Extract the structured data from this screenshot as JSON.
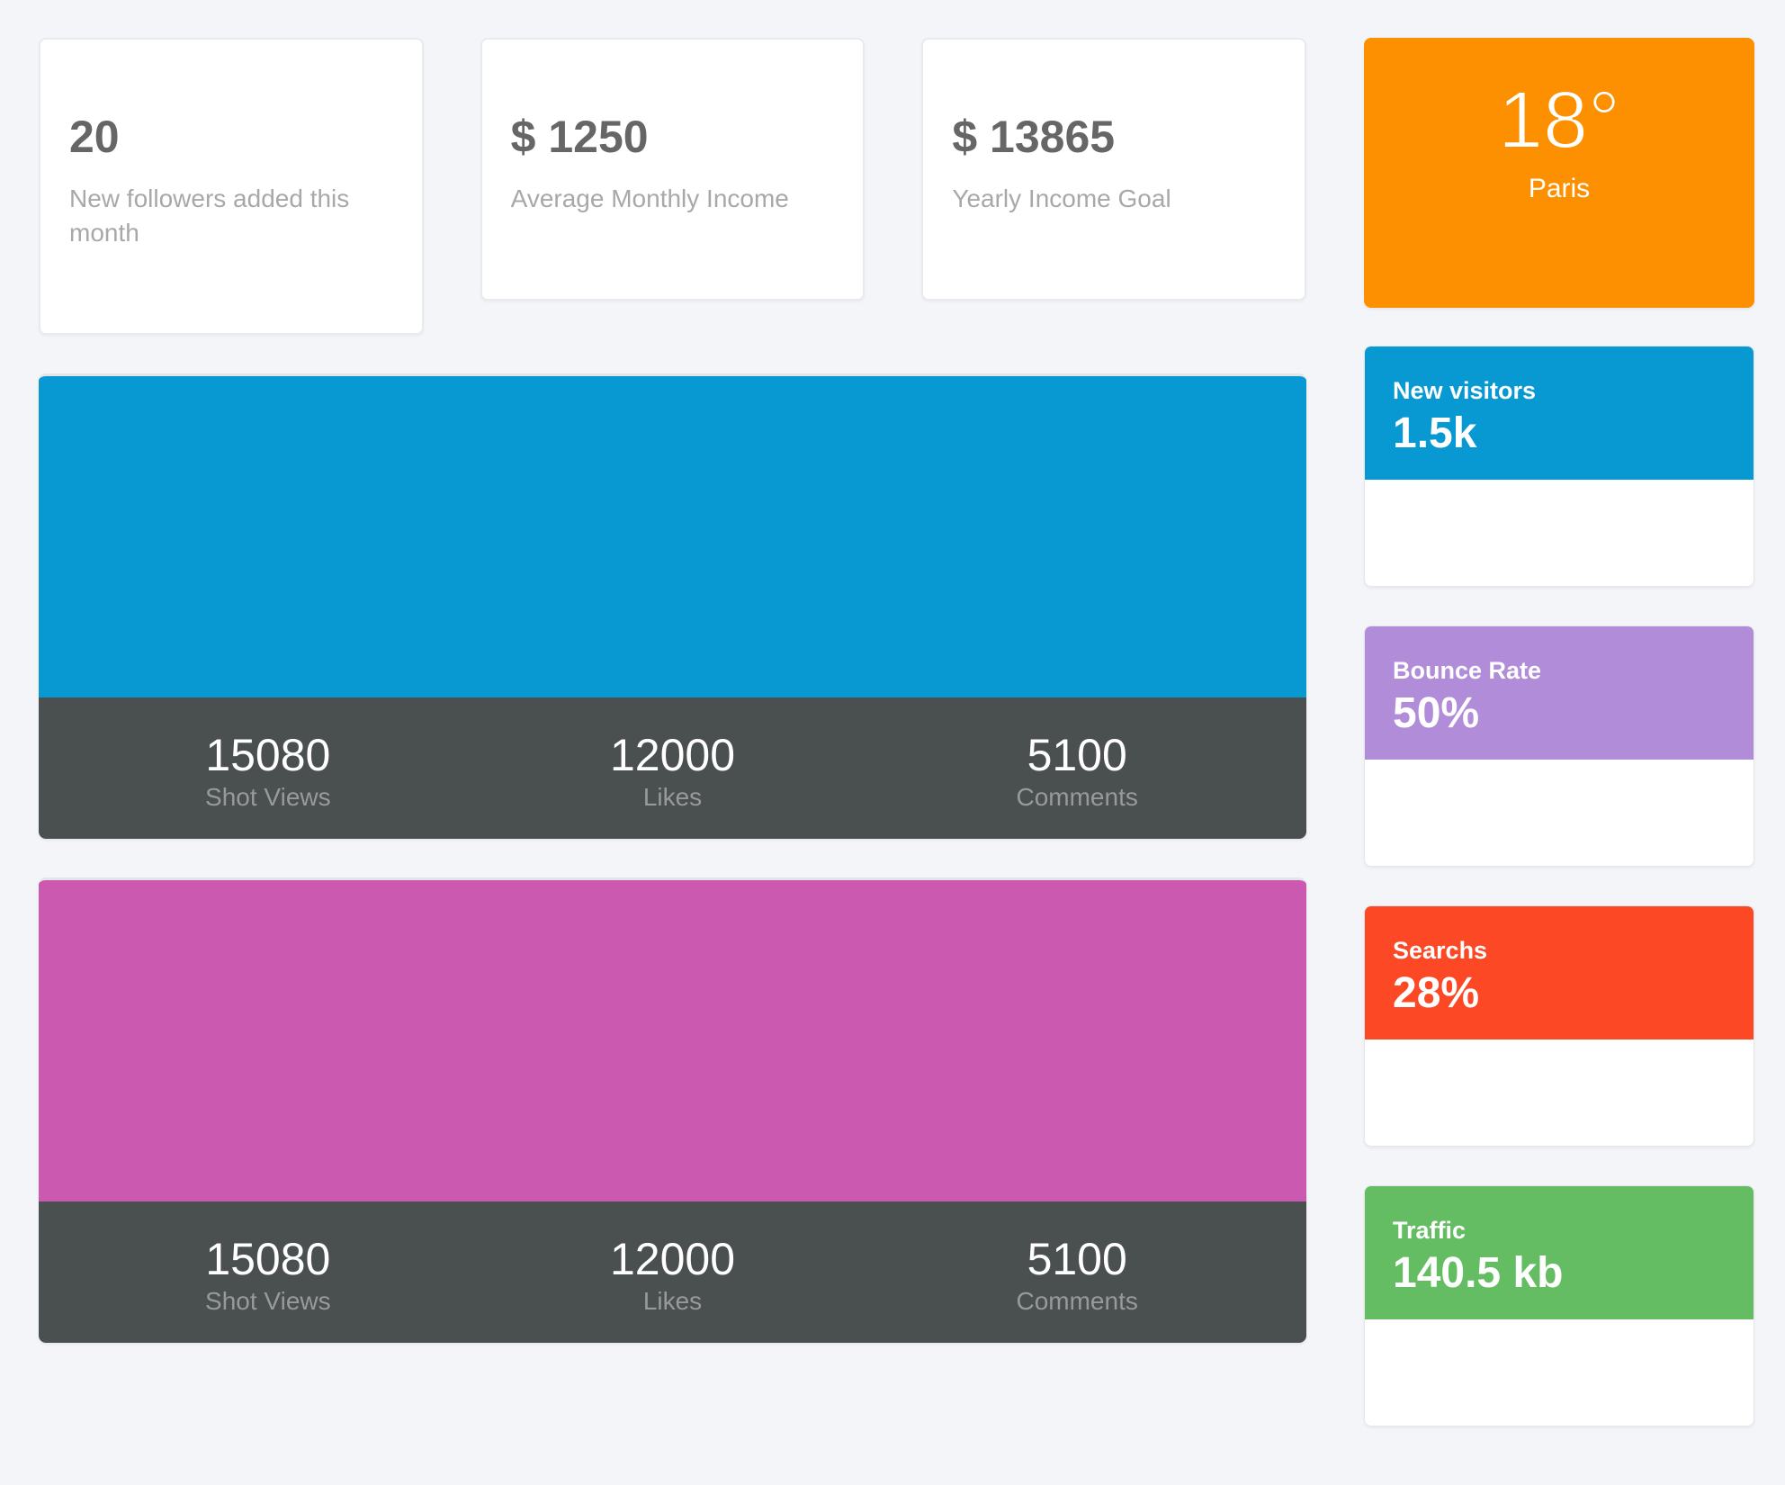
{
  "top_cards": [
    {
      "value": "20",
      "label": "New followers added this month"
    },
    {
      "value": "$ 1250",
      "label": "Average Monthly Income"
    },
    {
      "value": "$ 13865",
      "label": "Yearly Income Goal"
    }
  ],
  "weather": {
    "temperature": "18°",
    "city": "Paris",
    "color": "#fc9000"
  },
  "chart_panels": [
    {
      "id": "shot-stats-blue",
      "color": "#0899d3",
      "stats": [
        {
          "value": "15080",
          "label": "Shot Views"
        },
        {
          "value": "12000",
          "label": "Likes"
        },
        {
          "value": "5100",
          "label": "Comments"
        }
      ]
    },
    {
      "id": "shot-stats-pink",
      "color": "#cb59b0",
      "stats": [
        {
          "value": "15080",
          "label": "Shot Views"
        },
        {
          "value": "12000",
          "label": "Likes"
        },
        {
          "value": "5100",
          "label": "Comments"
        }
      ]
    }
  ],
  "side_cards": [
    {
      "title": "New visitors",
      "value": "1.5k",
      "color": "#0899d3"
    },
    {
      "title": "Bounce Rate",
      "value": "50%",
      "color": "#b18cd9"
    },
    {
      "title": "Searchs",
      "value": "28%",
      "color": "#fc4825"
    },
    {
      "title": "Traffic",
      "value": "140.5 kb",
      "color": "#64bd63"
    }
  ],
  "theme": {
    "background": "#f4f5f9",
    "footer_bar": "#4a504f"
  }
}
